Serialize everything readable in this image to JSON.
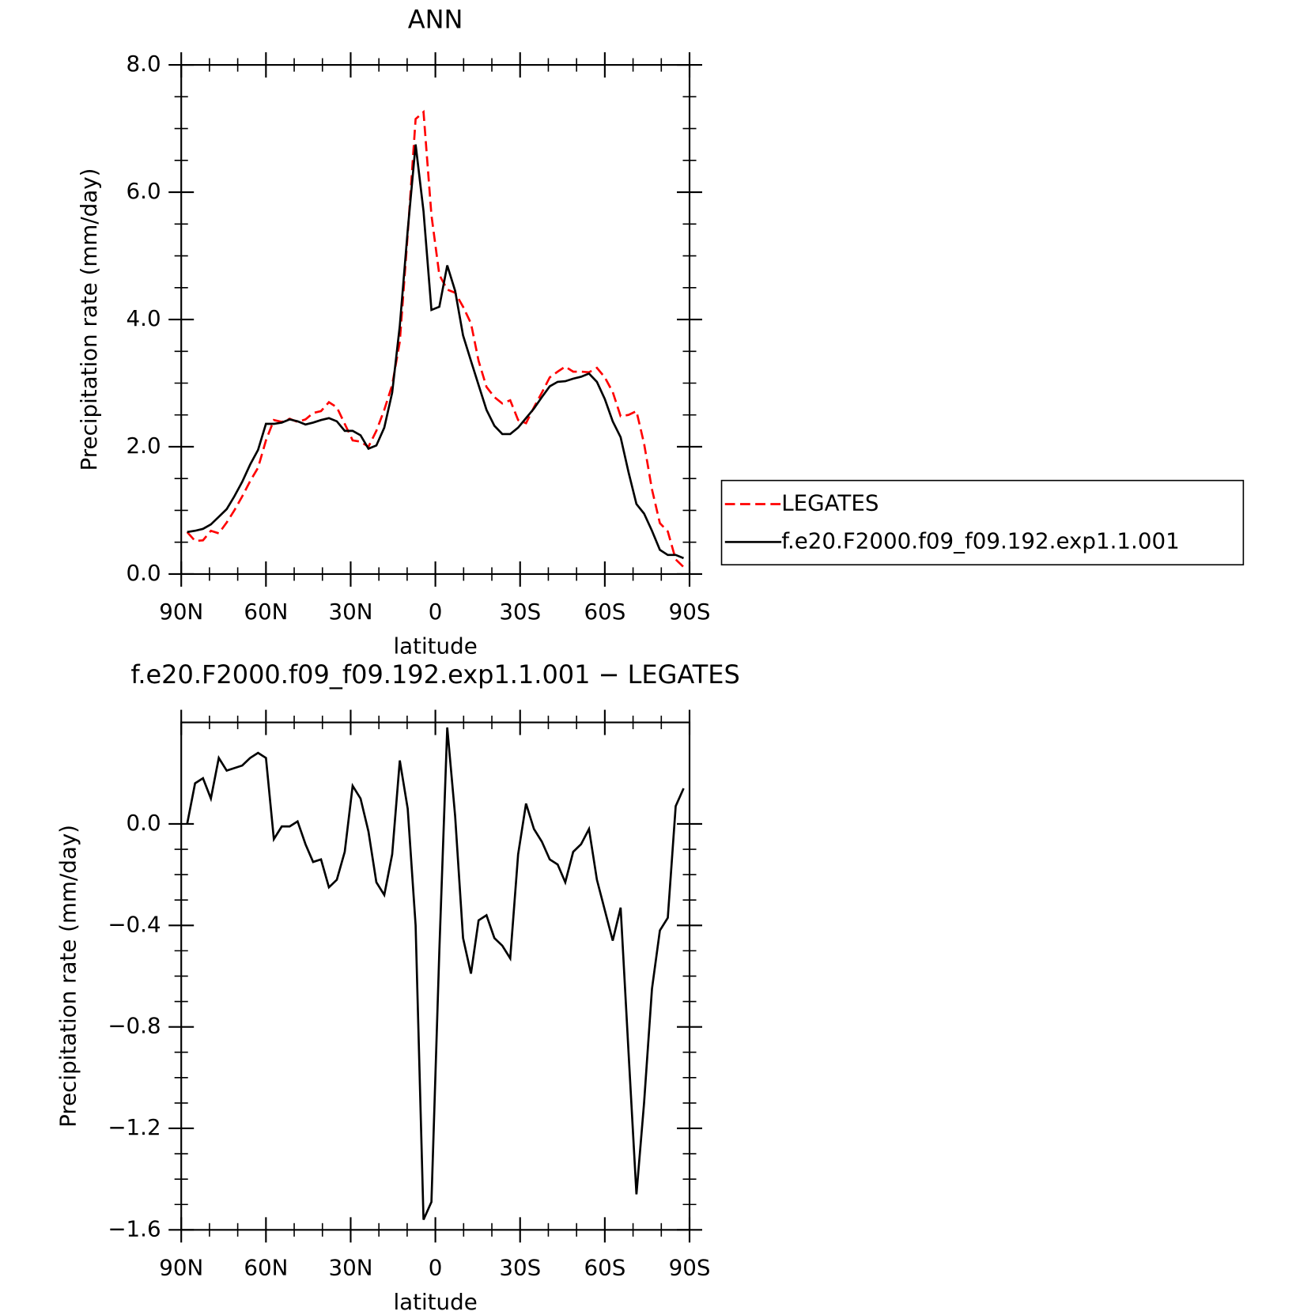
{
  "chart_data": [
    {
      "type": "line",
      "title": "ANN",
      "xlabel": "latitude",
      "ylabel": "Precipitation rate (mm/day)",
      "x": [
        87.9,
        85.1,
        82.3,
        79.5,
        76.7,
        73.9,
        71.2,
        68.4,
        65.6,
        62.8,
        60.0,
        57.2,
        54.4,
        51.6,
        48.8,
        46.0,
        43.3,
        40.5,
        37.7,
        34.9,
        32.1,
        29.3,
        26.5,
        23.7,
        20.9,
        18.1,
        15.3,
        12.6,
        9.8,
        7.0,
        4.2,
        1.4,
        -1.4,
        -4.2,
        -7.0,
        -9.8,
        -12.6,
        -15.3,
        -18.1,
        -20.9,
        -23.7,
        -26.5,
        -29.3,
        -32.1,
        -34.9,
        -37.7,
        -40.5,
        -43.3,
        -46.0,
        -48.8,
        -51.6,
        -54.4,
        -57.2,
        -60.0,
        -62.8,
        -65.6,
        -68.4,
        -71.2,
        -73.9,
        -76.7,
        -79.5,
        -82.3,
        -85.1,
        -87.9
      ],
      "series": [
        {
          "name": "LEGATES",
          "color": "#ff0000",
          "style": "dashed",
          "values": [
            0.66,
            0.52,
            0.53,
            0.68,
            0.64,
            0.81,
            1.0,
            1.22,
            1.46,
            1.67,
            2.1,
            2.42,
            2.39,
            2.44,
            2.39,
            2.43,
            2.53,
            2.56,
            2.7,
            2.62,
            2.36,
            2.1,
            2.08,
            2.0,
            2.25,
            2.58,
            2.97,
            3.65,
            5.34,
            7.15,
            7.26,
            5.64,
            4.7,
            4.47,
            4.42,
            4.2,
            3.94,
            3.35,
            2.94,
            2.78,
            2.68,
            2.73,
            2.42,
            2.37,
            2.62,
            2.85,
            3.09,
            3.18,
            3.26,
            3.18,
            3.18,
            3.17,
            3.24,
            3.09,
            2.86,
            2.48,
            2.5,
            2.56,
            2.05,
            1.33,
            0.8,
            0.67,
            0.23,
            0.11
          ]
        },
        {
          "name": "f.e20.F2000.f09_f09.192.exp1.1.001",
          "color": "#000000",
          "style": "solid",
          "values": [
            0.66,
            0.68,
            0.71,
            0.78,
            0.9,
            1.02,
            1.22,
            1.45,
            1.72,
            1.95,
            2.36,
            2.36,
            2.38,
            2.43,
            2.4,
            2.35,
            2.38,
            2.42,
            2.45,
            2.4,
            2.25,
            2.25,
            2.18,
            1.97,
            2.02,
            2.3,
            2.85,
            3.9,
            5.4,
            6.75,
            5.7,
            4.15,
            4.2,
            4.85,
            4.45,
            3.75,
            3.35,
            2.97,
            2.58,
            2.33,
            2.2,
            2.2,
            2.3,
            2.45,
            2.6,
            2.78,
            2.95,
            3.02,
            3.03,
            3.07,
            3.1,
            3.15,
            3.02,
            2.75,
            2.4,
            2.15,
            1.6,
            1.1,
            0.95,
            0.68,
            0.38,
            0.3,
            0.3,
            0.25
          ]
        }
      ],
      "xlim": [
        90,
        -90
      ],
      "xticks": [
        {
          "value": 90,
          "label": "90N"
        },
        {
          "value": 60,
          "label": "60N"
        },
        {
          "value": 30,
          "label": "30N"
        },
        0,
        {
          "value": -30,
          "label": "30S"
        },
        {
          "value": -60,
          "label": "60S"
        },
        {
          "value": -90,
          "label": "90S"
        }
      ],
      "ylim": [
        0,
        8
      ],
      "yticks": [
        {
          "value": 0,
          "label": "0.0"
        },
        {
          "value": 2,
          "label": "2.0"
        },
        {
          "value": 4,
          "label": "4.0"
        },
        {
          "value": 6,
          "label": "6.0"
        },
        {
          "value": 8,
          "label": "8.0"
        }
      ],
      "legend": "right"
    },
    {
      "type": "line",
      "title": "f.e20.F2000.f09_f09.192.exp1.1.001 − LEGATES",
      "xlabel": "latitude",
      "ylabel": "Precipitation rate (mm/day)",
      "x": [
        87.9,
        85.1,
        82.3,
        79.5,
        76.7,
        73.9,
        71.2,
        68.4,
        65.6,
        62.8,
        60.0,
        57.2,
        54.4,
        51.6,
        48.8,
        46.0,
        43.3,
        40.5,
        37.7,
        34.9,
        32.1,
        29.3,
        26.5,
        23.7,
        20.9,
        18.1,
        15.3,
        12.6,
        9.8,
        7.0,
        4.2,
        1.4,
        -1.4,
        -4.2,
        -7.0,
        -9.8,
        -12.6,
        -15.3,
        -18.1,
        -20.9,
        -23.7,
        -26.5,
        -29.3,
        -32.1,
        -34.9,
        -37.7,
        -40.5,
        -43.3,
        -46.0,
        -48.8,
        -51.6,
        -54.4,
        -57.2,
        -60.0,
        -62.8,
        -65.6,
        -68.4,
        -71.2,
        -73.9,
        -76.7,
        -79.5,
        -82.3,
        -85.1,
        -87.9
      ],
      "values": [
        0.0,
        0.16,
        0.18,
        0.1,
        0.26,
        0.21,
        0.22,
        0.23,
        0.26,
        0.28,
        0.26,
        -0.06,
        -0.01,
        -0.01,
        0.01,
        -0.08,
        -0.15,
        -0.14,
        -0.25,
        -0.22,
        -0.11,
        0.15,
        0.1,
        -0.03,
        -0.23,
        -0.28,
        -0.12,
        0.25,
        0.06,
        -0.4,
        -1.56,
        -1.49,
        -0.5,
        0.38,
        0.03,
        -0.45,
        -0.59,
        -0.38,
        -0.36,
        -0.45,
        -0.48,
        -0.53,
        -0.12,
        0.08,
        -0.02,
        -0.07,
        -0.14,
        -0.16,
        -0.23,
        -0.11,
        -0.08,
        -0.02,
        -0.22,
        -0.34,
        -0.46,
        -0.33,
        -0.9,
        -1.46,
        -1.1,
        -0.65,
        -0.42,
        -0.37,
        0.07,
        0.14
      ],
      "color": "#000000",
      "xlim": [
        90,
        -90
      ],
      "xticks": [
        {
          "value": 90,
          "label": "90N"
        },
        {
          "value": 60,
          "label": "60N"
        },
        {
          "value": 30,
          "label": "30N"
        },
        0,
        {
          "value": -30,
          "label": "30S"
        },
        {
          "value": -60,
          "label": "60S"
        },
        {
          "value": -90,
          "label": "90S"
        }
      ],
      "ylim": [
        -1.6,
        0.4
      ],
      "yticks": [
        {
          "value": -1.6,
          "label": "−1.6"
        },
        {
          "value": -1.2,
          "label": "−1.2"
        },
        {
          "value": -0.8,
          "label": "−0.8"
        },
        {
          "value": -0.4,
          "label": "−0.4"
        },
        {
          "value": 0,
          "label": "0.0"
        }
      ]
    }
  ]
}
